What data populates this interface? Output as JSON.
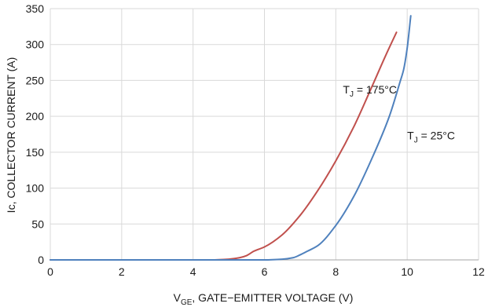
{
  "chart_data": {
    "type": "line",
    "title": "",
    "xlabel": {
      "main": "V",
      "sub": "GE",
      "rest": ", GATE−EMITTER VOLTAGE (V)"
    },
    "ylabel": "Ic, COLLECTOR CURRENT (A)",
    "xlim": [
      0,
      12
    ],
    "ylim": [
      0,
      350
    ],
    "xticks": [
      0,
      2,
      4,
      6,
      8,
      10,
      12
    ],
    "yticks": [
      0,
      50,
      100,
      150,
      200,
      250,
      300,
      350
    ],
    "grid": true,
    "series": [
      {
        "name": "175",
        "label": {
          "main": "T",
          "sub": "J",
          "rest": " = 175°C"
        },
        "color": "#c0504d",
        "x": [
          0,
          4.5,
          5.0,
          5.3,
          5.5,
          5.7,
          6.0,
          6.5,
          7.0,
          7.5,
          8.0,
          8.5,
          9.0,
          9.4,
          9.7
        ],
        "y": [
          0,
          0,
          1,
          3,
          6,
          12,
          18,
          35,
          62,
          97,
          138,
          185,
          240,
          285,
          317
        ]
      },
      {
        "name": "25",
        "label": {
          "main": "T",
          "sub": "J",
          "rest": " = 25°C"
        },
        "color": "#4f81bd",
        "x": [
          0,
          6.0,
          6.5,
          6.8,
          7.0,
          7.2,
          7.5,
          8.0,
          8.5,
          9.0,
          9.5,
          9.8,
          9.9,
          10.0,
          10.1
        ],
        "y": [
          0,
          0,
          1,
          3,
          7,
          12,
          20,
          48,
          88,
          140,
          200,
          248,
          265,
          295,
          340
        ]
      }
    ]
  }
}
